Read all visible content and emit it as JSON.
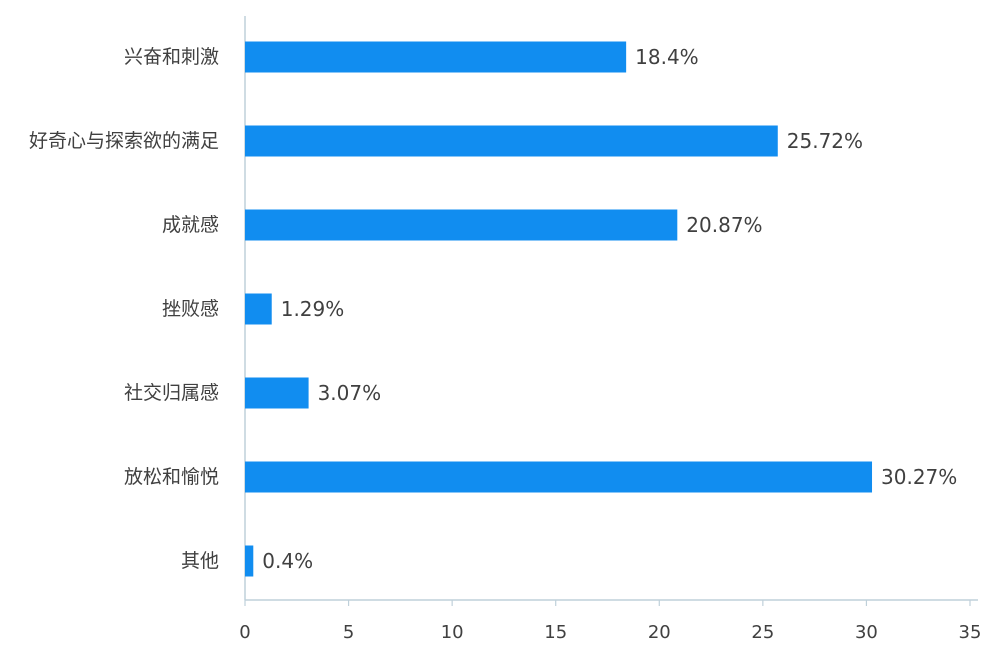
{
  "chart_data": {
    "type": "bar",
    "orientation": "horizontal",
    "categories": [
      "兴奋和刺激",
      "好奇心与探索欲的满足",
      "成就感",
      "挫败感",
      "社交归属感",
      "放松和愉悦",
      "其他"
    ],
    "values": [
      18.4,
      25.72,
      20.87,
      1.29,
      3.07,
      30.27,
      0.4
    ],
    "data_labels": [
      "18.4%",
      "25.72%",
      "20.87%",
      "1.29%",
      "3.07%",
      "30.27%",
      "0.4%"
    ],
    "title": "",
    "xlabel": "",
    "ylabel": "",
    "xlim": [
      0,
      35
    ],
    "x_ticks": [
      0,
      5,
      10,
      15,
      20,
      25,
      30,
      35
    ],
    "grid": false,
    "legend": "none",
    "colors": {
      "bar": "#118DF0",
      "axis": "#BFD0DA",
      "text": "#404040"
    }
  }
}
